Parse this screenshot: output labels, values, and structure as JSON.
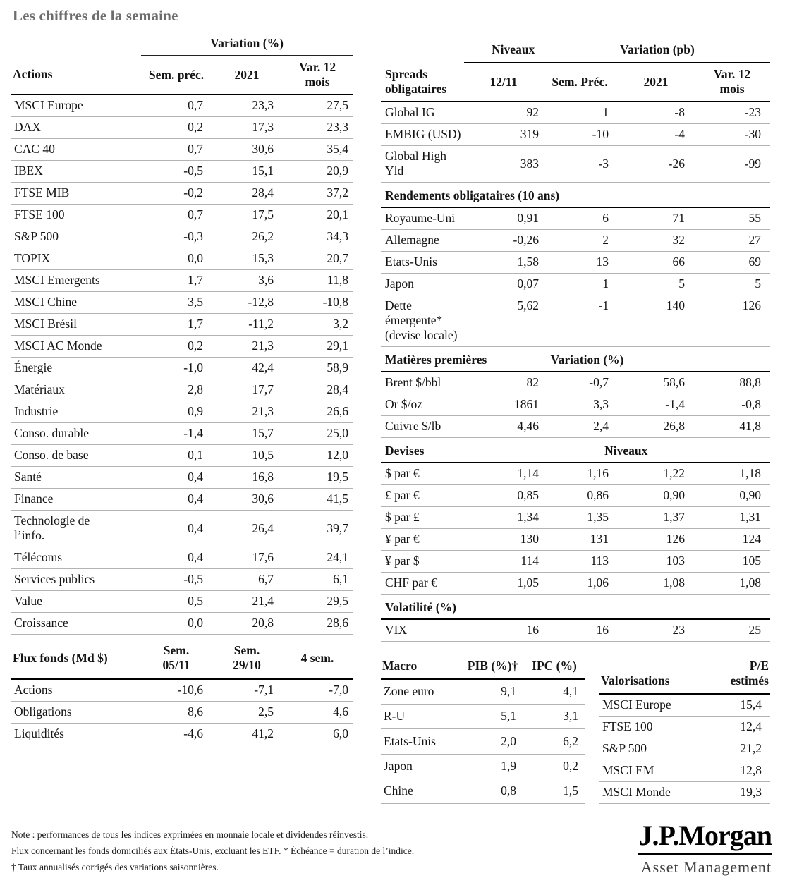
{
  "title": "Les chiffres de la semaine",
  "actions_table": {
    "group_header": "Variation (%)",
    "columns": [
      "Actions",
      "Sem. préc.",
      "2021",
      "Var. 12\nmois"
    ],
    "rows": [
      [
        "MSCI Europe",
        "0,7",
        "23,3",
        "27,5"
      ],
      [
        "DAX",
        "0,2",
        "17,3",
        "23,3"
      ],
      [
        "CAC 40",
        "0,7",
        "30,6",
        "35,4"
      ],
      [
        "IBEX",
        "-0,5",
        "15,1",
        "20,9"
      ],
      [
        "FTSE MIB",
        "-0,2",
        "28,4",
        "37,2"
      ],
      [
        "FTSE 100",
        "0,7",
        "17,5",
        "20,1"
      ],
      [
        "S&P 500",
        "-0,3",
        "26,2",
        "34,3"
      ],
      [
        "TOPIX",
        "0,0",
        "15,3",
        "20,7"
      ],
      [
        "MSCI Emergents",
        "1,7",
        "3,6",
        "11,8"
      ],
      [
        "MSCI Chine",
        "3,5",
        "-12,8",
        "-10,8"
      ],
      [
        "MSCI Brésil",
        "1,7",
        "-11,2",
        "3,2"
      ],
      [
        "MSCI AC Monde",
        "0,2",
        "21,3",
        "29,1"
      ],
      [
        "Énergie",
        "-1,0",
        "42,4",
        "58,9"
      ],
      [
        "Matériaux",
        "2,8",
        "17,7",
        "28,4"
      ],
      [
        "Industrie",
        "0,9",
        "21,3",
        "26,6"
      ],
      [
        "Conso. durable",
        "-1,4",
        "15,7",
        "25,0"
      ],
      [
        "Conso. de base",
        "0,1",
        "10,5",
        "12,0"
      ],
      [
        "Santé",
        "0,4",
        "16,8",
        "19,5"
      ],
      [
        "Finance",
        "0,4",
        "30,6",
        "41,5"
      ],
      [
        "Technologie de\nl’info.",
        "0,4",
        "26,4",
        "39,7"
      ],
      [
        "Télécoms",
        "0,4",
        "17,6",
        "24,1"
      ],
      [
        "Services publics",
        "-0,5",
        "6,7",
        "6,1"
      ],
      [
        "Value",
        "0,5",
        "21,4",
        "29,5"
      ],
      [
        "Croissance",
        "0,0",
        "20,8",
        "28,6"
      ]
    ]
  },
  "flux_table": {
    "columns": [
      "Flux fonds (Md $)",
      "Sem.\n05/11",
      "Sem.\n29/10",
      "4 sem."
    ],
    "rows": [
      [
        "Actions",
        "-10,6",
        "-7,1",
        "-7,0"
      ],
      [
        "Obligations",
        "8,6",
        "2,5",
        "4,6"
      ],
      [
        "Liquidités",
        "-4,6",
        "41,2",
        "6,0"
      ]
    ]
  },
  "spreads_table": {
    "group_headers": [
      "Niveaux",
      "Variation (pb)"
    ],
    "columns": [
      "Spreads\nobligataires",
      "12/11",
      "Sem. Préc.",
      "2021",
      "Var. 12\nmois"
    ],
    "rows": [
      [
        "Global IG",
        "92",
        "1",
        "-8",
        "-23"
      ],
      [
        "EMBIG (USD)",
        "319",
        "-10",
        "-4",
        "-30"
      ],
      [
        "Global High Yld",
        "383",
        "-3",
        "-26",
        "-99"
      ]
    ]
  },
  "rendements_table": {
    "title": "Rendements obligataires (10 ans)",
    "rows": [
      [
        "Royaume-Uni",
        "0,91",
        "6",
        "71",
        "55"
      ],
      [
        "Allemagne",
        "-0,26",
        "2",
        "32",
        "27"
      ],
      [
        "Etats-Unis",
        "1,58",
        "13",
        "66",
        "69"
      ],
      [
        "Japon",
        "0,07",
        "1",
        "5",
        "5"
      ],
      [
        "Dette émergente*\n(devise locale)",
        "5,62",
        "-1",
        "140",
        "126"
      ]
    ]
  },
  "matieres_table": {
    "title": "Matières premières",
    "group_header": "Variation (%)",
    "rows": [
      [
        "Brent $/bbl",
        "82",
        "-0,7",
        "58,6",
        "88,8"
      ],
      [
        "Or $/oz",
        "1861",
        "3,3",
        "-1,4",
        "-0,8"
      ],
      [
        "Cuivre $/lb",
        "4,46",
        "2,4",
        "26,8",
        "41,8"
      ]
    ]
  },
  "devises_table": {
    "title": "Devises",
    "group_header": "Niveaux",
    "rows": [
      [
        "$ par €",
        "1,14",
        "1,16",
        "1,22",
        "1,18"
      ],
      [
        "£ par €",
        "0,85",
        "0,86",
        "0,90",
        "0,90"
      ],
      [
        "$ par £",
        "1,34",
        "1,35",
        "1,37",
        "1,31"
      ],
      [
        "¥ par €",
        "130",
        "131",
        "126",
        "124"
      ],
      [
        "¥ par $",
        "114",
        "113",
        "103",
        "105"
      ],
      [
        "CHF par €",
        "1,05",
        "1,06",
        "1,08",
        "1,08"
      ]
    ]
  },
  "volatilite_table": {
    "title": "Volatilité (%)",
    "rows": [
      [
        "VIX",
        "16",
        "16",
        "23",
        "25"
      ]
    ]
  },
  "macro_table": {
    "columns": [
      "Macro",
      "PIB (%)†",
      "IPC (%)"
    ],
    "rows": [
      [
        "Zone euro",
        "9,1",
        "4,1"
      ],
      [
        "R-U",
        "5,1",
        "3,1"
      ],
      [
        "Etats-Unis",
        "2,0",
        "6,2"
      ],
      [
        "Japon",
        "1,9",
        "0,2"
      ],
      [
        "Chine",
        "0,8",
        "1,5"
      ]
    ]
  },
  "valorisations_table": {
    "columns": [
      "Valorisations",
      "P/E\nestimés"
    ],
    "rows": [
      [
        "MSCI Europe",
        "15,4"
      ],
      [
        "FTSE 100",
        "12,4"
      ],
      [
        "S&P 500",
        "21,2"
      ],
      [
        "MSCI EM",
        "12,8"
      ],
      [
        "MSCI Monde",
        "19,3"
      ]
    ]
  },
  "footnotes": [
    "Note : performances de tous les indices exprimées en monnaie locale et dividendes réinvestis.",
    "Flux concernant les fonds domiciliés aux États-Unis, excluant les ETF. * Échéance = duration de l’indice.",
    "† Taux annualisés corrigés des variations saisonnières."
  ],
  "logo": {
    "brand": "J.P.Morgan",
    "division": "Asset Management"
  }
}
